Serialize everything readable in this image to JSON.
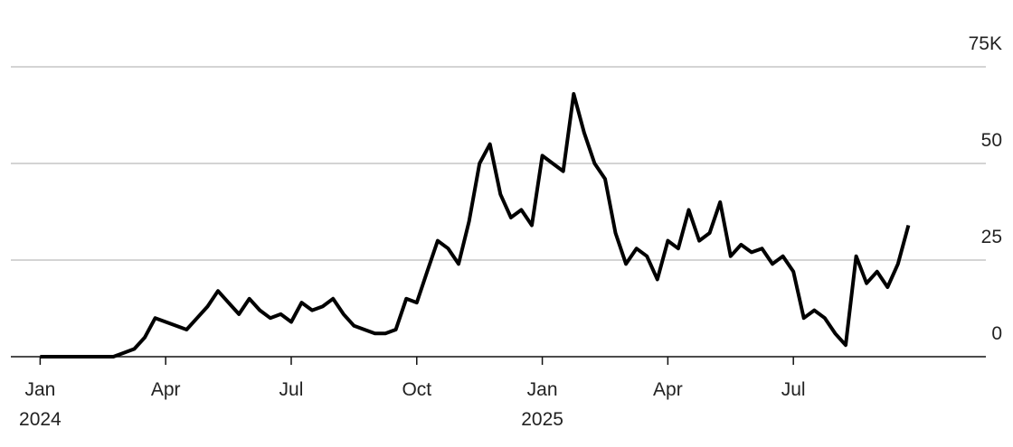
{
  "chart_data": {
    "type": "line",
    "x": [
      0,
      0.25,
      0.5,
      0.75,
      1,
      1.25,
      1.5,
      1.75,
      2,
      2.25,
      2.5,
      2.75,
      3,
      3.25,
      3.5,
      3.75,
      4,
      4.25,
      4.5,
      4.75,
      5,
      5.25,
      5.5,
      5.75,
      6,
      6.25,
      6.5,
      6.75,
      7,
      7.25,
      7.5,
      7.75,
      8,
      8.25,
      8.5,
      8.75,
      9,
      9.25,
      9.5,
      9.75,
      10,
      10.25,
      10.5,
      10.75,
      11,
      11.25,
      11.5,
      11.75,
      12,
      12.25,
      12.5,
      12.75,
      13,
      13.25,
      13.5,
      13.75,
      14,
      14.25,
      14.5,
      14.75,
      15,
      15.25,
      15.5,
      15.75,
      16,
      16.25,
      16.5,
      16.75,
      17,
      17.25,
      17.5,
      17.75,
      18,
      18.25,
      18.5,
      18.75,
      19,
      19.25,
      19.5,
      19.75,
      20,
      20.25,
      20.5,
      20.75
    ],
    "series": [
      {
        "color": "#000000",
        "values": [
          0,
          0,
          0,
          0,
          0,
          0,
          0,
          0,
          1,
          2,
          5,
          10,
          9,
          8,
          7,
          10,
          13,
          17,
          14,
          11,
          15,
          12,
          10,
          11,
          9,
          14,
          12,
          13,
          15,
          11,
          8,
          7,
          6,
          6,
          7,
          15,
          14,
          22,
          30,
          28,
          24,
          35,
          50,
          55,
          42,
          36,
          38,
          34,
          52,
          50,
          48,
          68,
          58,
          50,
          46,
          32,
          24,
          28,
          26,
          20,
          30,
          28,
          38,
          30,
          32,
          40,
          26,
          29,
          27,
          28,
          24,
          26,
          22,
          10,
          12,
          10,
          6,
          3,
          26,
          19,
          22,
          18,
          24,
          34
        ]
      }
    ],
    "xlim": [
      -0.7,
      22.6
    ],
    "xticks": [
      {
        "value": 0,
        "label": "Jan"
      },
      {
        "value": 3,
        "label": "Apr"
      },
      {
        "value": 6,
        "label": "Jul"
      },
      {
        "value": 9,
        "label": "Oct"
      },
      {
        "value": 12,
        "label": "Jan"
      },
      {
        "value": 15,
        "label": "Apr"
      },
      {
        "value": 18,
        "label": "Jul"
      }
    ],
    "xtick_years": [
      {
        "value": 0,
        "label": "2024"
      },
      {
        "value": 12,
        "label": "2025"
      }
    ],
    "ylim": [
      0,
      75
    ],
    "yticks": [
      0,
      25,
      50,
      {
        "value": 75,
        "label": "75K"
      }
    ],
    "grid": true
  }
}
